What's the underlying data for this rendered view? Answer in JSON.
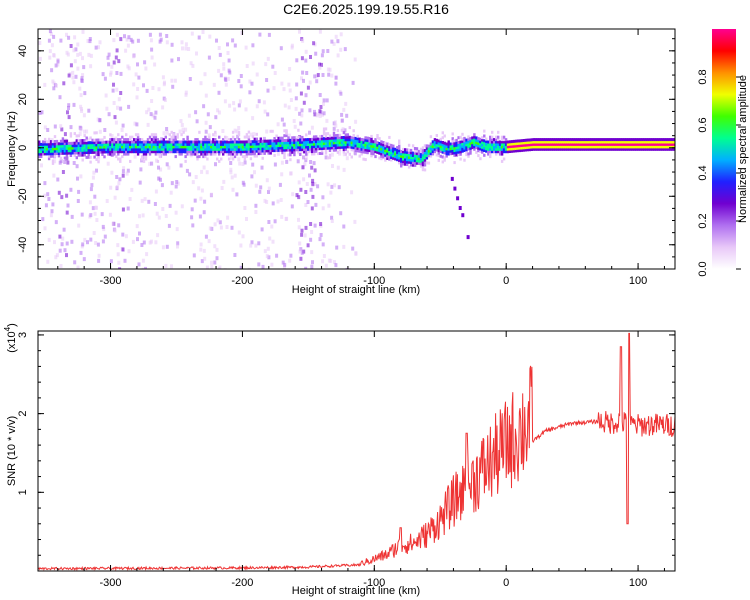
{
  "title": "C2E6.2025.199.19.55.R16",
  "colors": {
    "snr_line": "#ee3333",
    "axis": "#000000",
    "colormap": [
      "#ffffff",
      "#e8c8f8",
      "#b070f0",
      "#7000d0",
      "#2020ff",
      "#00b0ff",
      "#00ff90",
      "#40ff00",
      "#f0ff00",
      "#ff9000",
      "#ff0000",
      "#ff0090"
    ]
  },
  "chart_data": [
    {
      "type": "heatmap",
      "xlabel": "Height of straight line (km)",
      "ylabel": "Frequency (Hz)",
      "xlim": [
        -355,
        128
      ],
      "ylim": [
        -50,
        49
      ],
      "x_ticks": [
        -300,
        -200,
        -100,
        0,
        100
      ],
      "y_ticks": [
        -40,
        -20,
        0,
        20,
        40
      ],
      "colorbar": {
        "label": "Normalized spectral amplitude",
        "range": [
          0,
          1
        ],
        "ticks": [
          "0.0",
          "0.2",
          "0.4",
          "0.6",
          "0.8"
        ]
      },
      "ridge": {
        "x": [
          -355,
          -300,
          -250,
          -200,
          -150,
          -120,
          -100,
          -80,
          -65,
          -55,
          -45,
          -35,
          -25,
          -15,
          -5,
          0,
          20,
          50,
          80,
          100,
          128
        ],
        "y": [
          0,
          1,
          1,
          1,
          2,
          3,
          1,
          -3,
          -4,
          2,
          0,
          1,
          3,
          1,
          1,
          1,
          2,
          2,
          2,
          2,
          2
        ]
      }
    },
    {
      "type": "line",
      "xlabel": "Height of straight line (km)",
      "ylabel": "SNR (10 * v/v)",
      "y_multiplier": "(x10",
      "y_multiplier_exp": "4",
      "xlim": [
        -355,
        128
      ],
      "ylim": [
        0,
        3.05
      ],
      "x_ticks": [
        -300,
        -200,
        -100,
        0,
        100
      ],
      "y_ticks": [
        1,
        2,
        3
      ],
      "envelope": {
        "x": [
          -355,
          -200,
          -150,
          -110,
          -90,
          -80,
          -70,
          -60,
          -50,
          -40,
          -30,
          -20,
          -10,
          0,
          10,
          20,
          30,
          50,
          70,
          80,
          85,
          90,
          95,
          100,
          110,
          128
        ],
        "y": [
          0.03,
          0.04,
          0.05,
          0.08,
          0.18,
          0.28,
          0.3,
          0.4,
          0.55,
          0.75,
          0.9,
          1.05,
          1.2,
          1.35,
          1.5,
          1.65,
          1.78,
          1.88,
          1.9,
          1.88,
          1.9,
          1.88,
          1.86,
          1.85,
          1.86,
          1.85
        ]
      },
      "peaks": [
        {
          "x": 87,
          "y": 2.85
        },
        {
          "x": 93,
          "y": 3.02
        },
        {
          "x": 92,
          "y": 0.6
        },
        {
          "x": -30,
          "y": 1.75
        },
        {
          "x": -80,
          "y": 0.55
        }
      ]
    }
  ]
}
